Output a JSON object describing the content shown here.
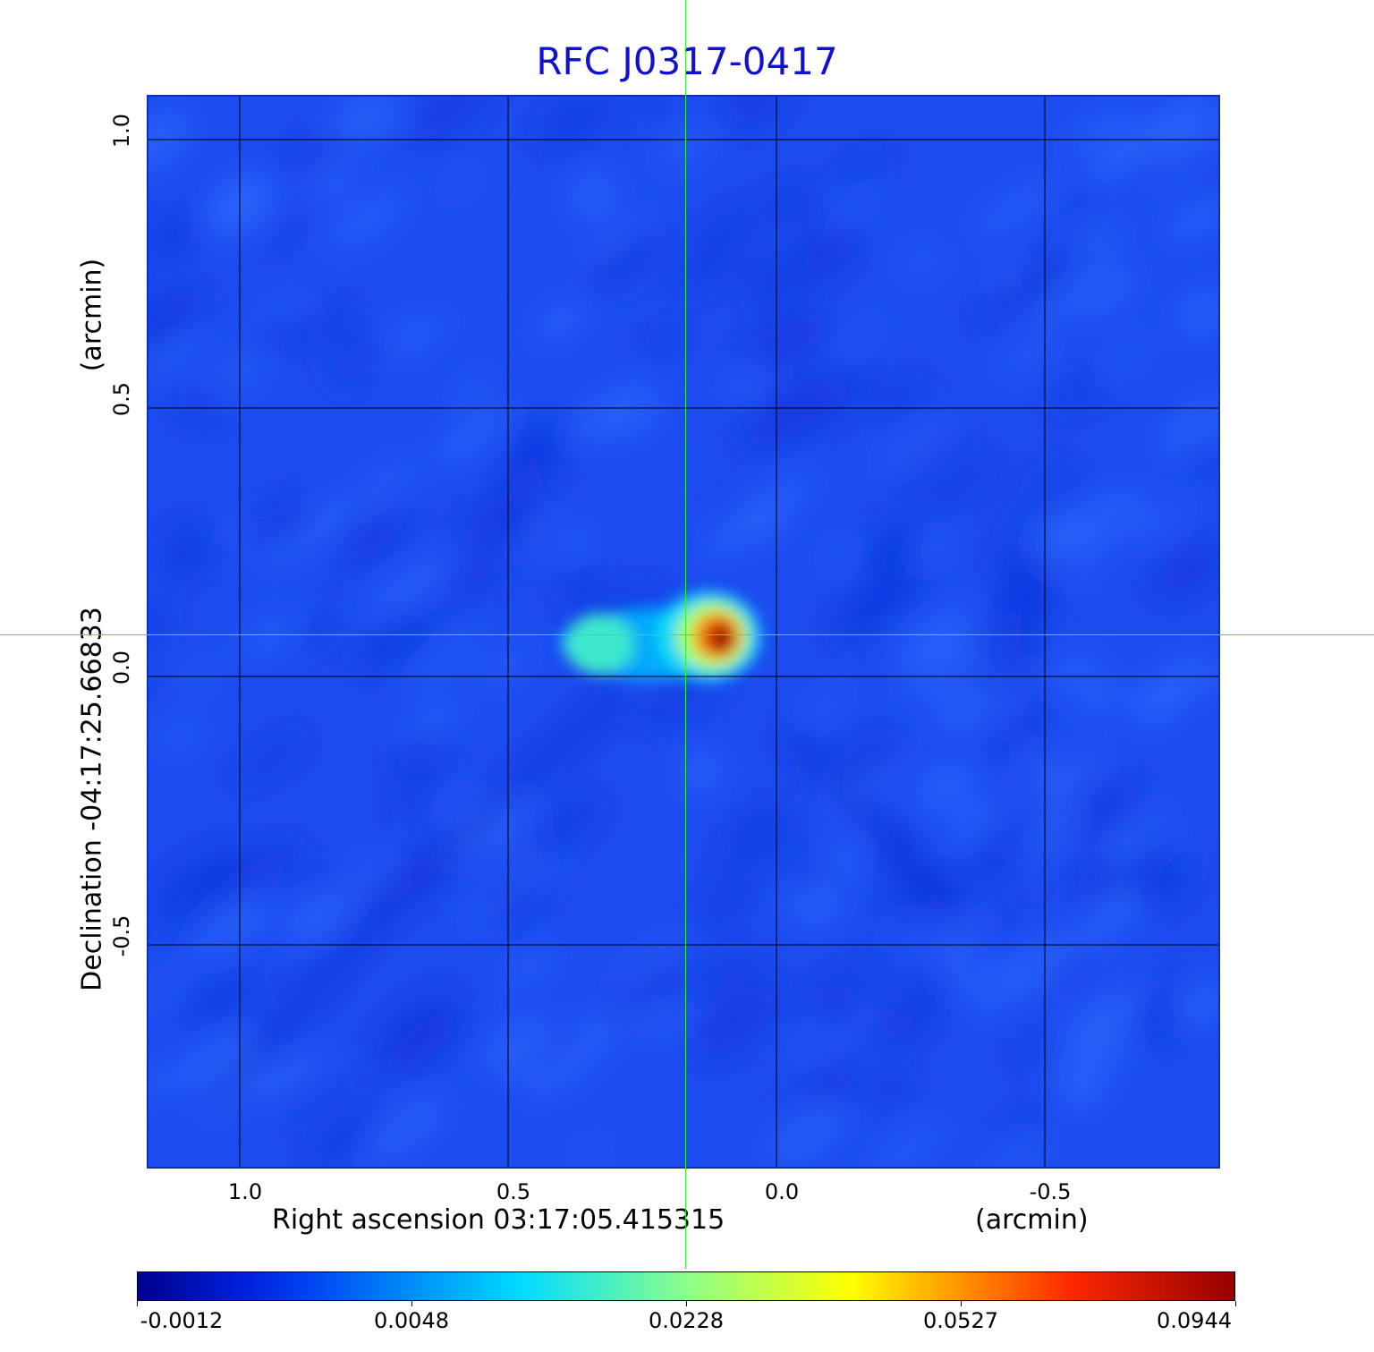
{
  "chart_data": {
    "type": "heatmap",
    "title": "RFC J0317-0417",
    "xlabel": "Right ascension  03:17:05.415315",
    "xunit": "(arcmin)",
    "ylabel": "Declination  -04:17:25.66833",
    "yunit": "(arcmin)",
    "x_ticks": [
      "1.0",
      "0.5",
      "0.0",
      "-0.5"
    ],
    "x_tick_values": [
      1.0,
      0.5,
      0.0,
      -0.5
    ],
    "y_ticks": [
      "1.0",
      "0.5",
      "0.0",
      "-0.5"
    ],
    "y_tick_values": [
      1.0,
      0.5,
      0.0,
      -0.5
    ],
    "xlim": [
      1.17,
      -0.83
    ],
    "ylim": [
      -0.92,
      1.08
    ],
    "grid": true,
    "colormap": "jet",
    "colorbar": {
      "tick_labels": [
        "-0.0012",
        "0.0048",
        "0.0228",
        "0.0527",
        "0.0944"
      ],
      "tick_values": [
        -0.0012,
        0.0048,
        0.0228,
        0.0527,
        0.0944
      ]
    },
    "crosshair": {
      "x": 0.165,
      "y": 0.072,
      "color": "#33ee33"
    },
    "features": [
      {
        "kind": "peak",
        "x": 0.11,
        "y": 0.075,
        "value": 0.0944
      },
      {
        "kind": "jet-knot",
        "x": 0.33,
        "y": 0.06,
        "value": 0.022
      }
    ]
  }
}
